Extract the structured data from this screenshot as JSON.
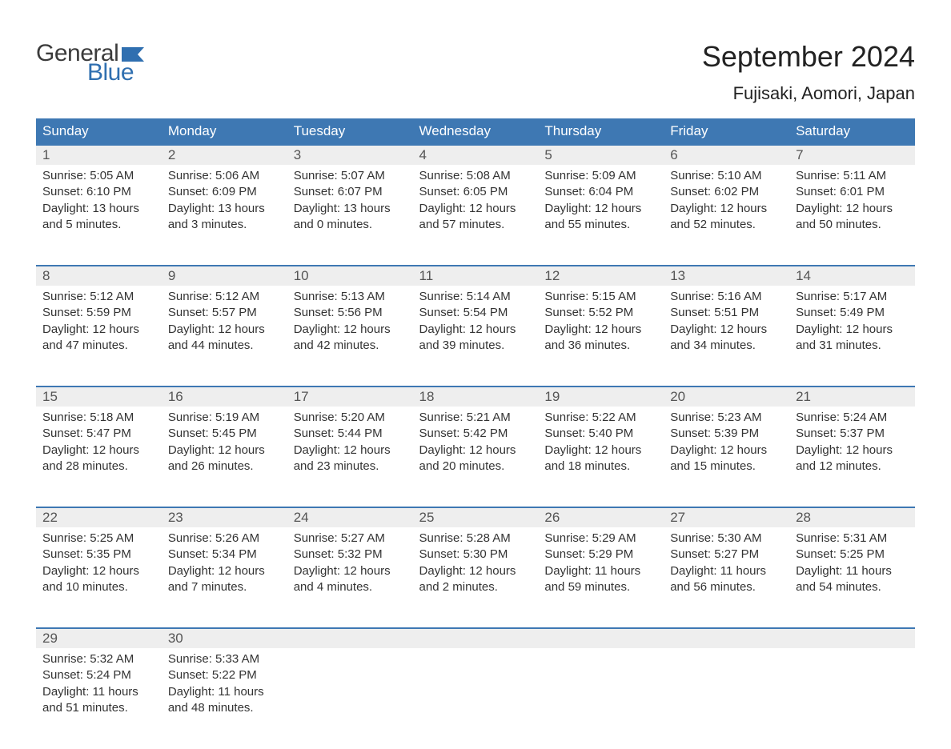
{
  "logo": {
    "text1": "General",
    "text2": "Blue",
    "color1": "#3b3b3b",
    "color2": "#2f6fb0",
    "flag_color": "#2f6fb0"
  },
  "title": "September 2024",
  "location": "Fujisaki, Aomori, Japan",
  "header_bg": "#3e78b3",
  "header_fg": "#ffffff",
  "daynum_bg": "#eeeeee",
  "text_color": "#333333",
  "week_sep_color": "#3e78b3",
  "day_headers": [
    "Sunday",
    "Monday",
    "Tuesday",
    "Wednesday",
    "Thursday",
    "Friday",
    "Saturday"
  ],
  "weeks": [
    [
      {
        "n": "1",
        "sunrise": "5:05 AM",
        "sunset": "6:10 PM",
        "dl_h": "13",
        "dl_m": "5"
      },
      {
        "n": "2",
        "sunrise": "5:06 AM",
        "sunset": "6:09 PM",
        "dl_h": "13",
        "dl_m": "3"
      },
      {
        "n": "3",
        "sunrise": "5:07 AM",
        "sunset": "6:07 PM",
        "dl_h": "13",
        "dl_m": "0"
      },
      {
        "n": "4",
        "sunrise": "5:08 AM",
        "sunset": "6:05 PM",
        "dl_h": "12",
        "dl_m": "57"
      },
      {
        "n": "5",
        "sunrise": "5:09 AM",
        "sunset": "6:04 PM",
        "dl_h": "12",
        "dl_m": "55"
      },
      {
        "n": "6",
        "sunrise": "5:10 AM",
        "sunset": "6:02 PM",
        "dl_h": "12",
        "dl_m": "52"
      },
      {
        "n": "7",
        "sunrise": "5:11 AM",
        "sunset": "6:01 PM",
        "dl_h": "12",
        "dl_m": "50"
      }
    ],
    [
      {
        "n": "8",
        "sunrise": "5:12 AM",
        "sunset": "5:59 PM",
        "dl_h": "12",
        "dl_m": "47"
      },
      {
        "n": "9",
        "sunrise": "5:12 AM",
        "sunset": "5:57 PM",
        "dl_h": "12",
        "dl_m": "44"
      },
      {
        "n": "10",
        "sunrise": "5:13 AM",
        "sunset": "5:56 PM",
        "dl_h": "12",
        "dl_m": "42"
      },
      {
        "n": "11",
        "sunrise": "5:14 AM",
        "sunset": "5:54 PM",
        "dl_h": "12",
        "dl_m": "39"
      },
      {
        "n": "12",
        "sunrise": "5:15 AM",
        "sunset": "5:52 PM",
        "dl_h": "12",
        "dl_m": "36"
      },
      {
        "n": "13",
        "sunrise": "5:16 AM",
        "sunset": "5:51 PM",
        "dl_h": "12",
        "dl_m": "34"
      },
      {
        "n": "14",
        "sunrise": "5:17 AM",
        "sunset": "5:49 PM",
        "dl_h": "12",
        "dl_m": "31"
      }
    ],
    [
      {
        "n": "15",
        "sunrise": "5:18 AM",
        "sunset": "5:47 PM",
        "dl_h": "12",
        "dl_m": "28"
      },
      {
        "n": "16",
        "sunrise": "5:19 AM",
        "sunset": "5:45 PM",
        "dl_h": "12",
        "dl_m": "26"
      },
      {
        "n": "17",
        "sunrise": "5:20 AM",
        "sunset": "5:44 PM",
        "dl_h": "12",
        "dl_m": "23"
      },
      {
        "n": "18",
        "sunrise": "5:21 AM",
        "sunset": "5:42 PM",
        "dl_h": "12",
        "dl_m": "20"
      },
      {
        "n": "19",
        "sunrise": "5:22 AM",
        "sunset": "5:40 PM",
        "dl_h": "12",
        "dl_m": "18"
      },
      {
        "n": "20",
        "sunrise": "5:23 AM",
        "sunset": "5:39 PM",
        "dl_h": "12",
        "dl_m": "15"
      },
      {
        "n": "21",
        "sunrise": "5:24 AM",
        "sunset": "5:37 PM",
        "dl_h": "12",
        "dl_m": "12"
      }
    ],
    [
      {
        "n": "22",
        "sunrise": "5:25 AM",
        "sunset": "5:35 PM",
        "dl_h": "12",
        "dl_m": "10"
      },
      {
        "n": "23",
        "sunrise": "5:26 AM",
        "sunset": "5:34 PM",
        "dl_h": "12",
        "dl_m": "7"
      },
      {
        "n": "24",
        "sunrise": "5:27 AM",
        "sunset": "5:32 PM",
        "dl_h": "12",
        "dl_m": "4"
      },
      {
        "n": "25",
        "sunrise": "5:28 AM",
        "sunset": "5:30 PM",
        "dl_h": "12",
        "dl_m": "2"
      },
      {
        "n": "26",
        "sunrise": "5:29 AM",
        "sunset": "5:29 PM",
        "dl_h": "11",
        "dl_m": "59"
      },
      {
        "n": "27",
        "sunrise": "5:30 AM",
        "sunset": "5:27 PM",
        "dl_h": "11",
        "dl_m": "56"
      },
      {
        "n": "28",
        "sunrise": "5:31 AM",
        "sunset": "5:25 PM",
        "dl_h": "11",
        "dl_m": "54"
      }
    ],
    [
      {
        "n": "29",
        "sunrise": "5:32 AM",
        "sunset": "5:24 PM",
        "dl_h": "11",
        "dl_m": "51"
      },
      {
        "n": "30",
        "sunrise": "5:33 AM",
        "sunset": "5:22 PM",
        "dl_h": "11",
        "dl_m": "48"
      },
      null,
      null,
      null,
      null,
      null
    ]
  ]
}
